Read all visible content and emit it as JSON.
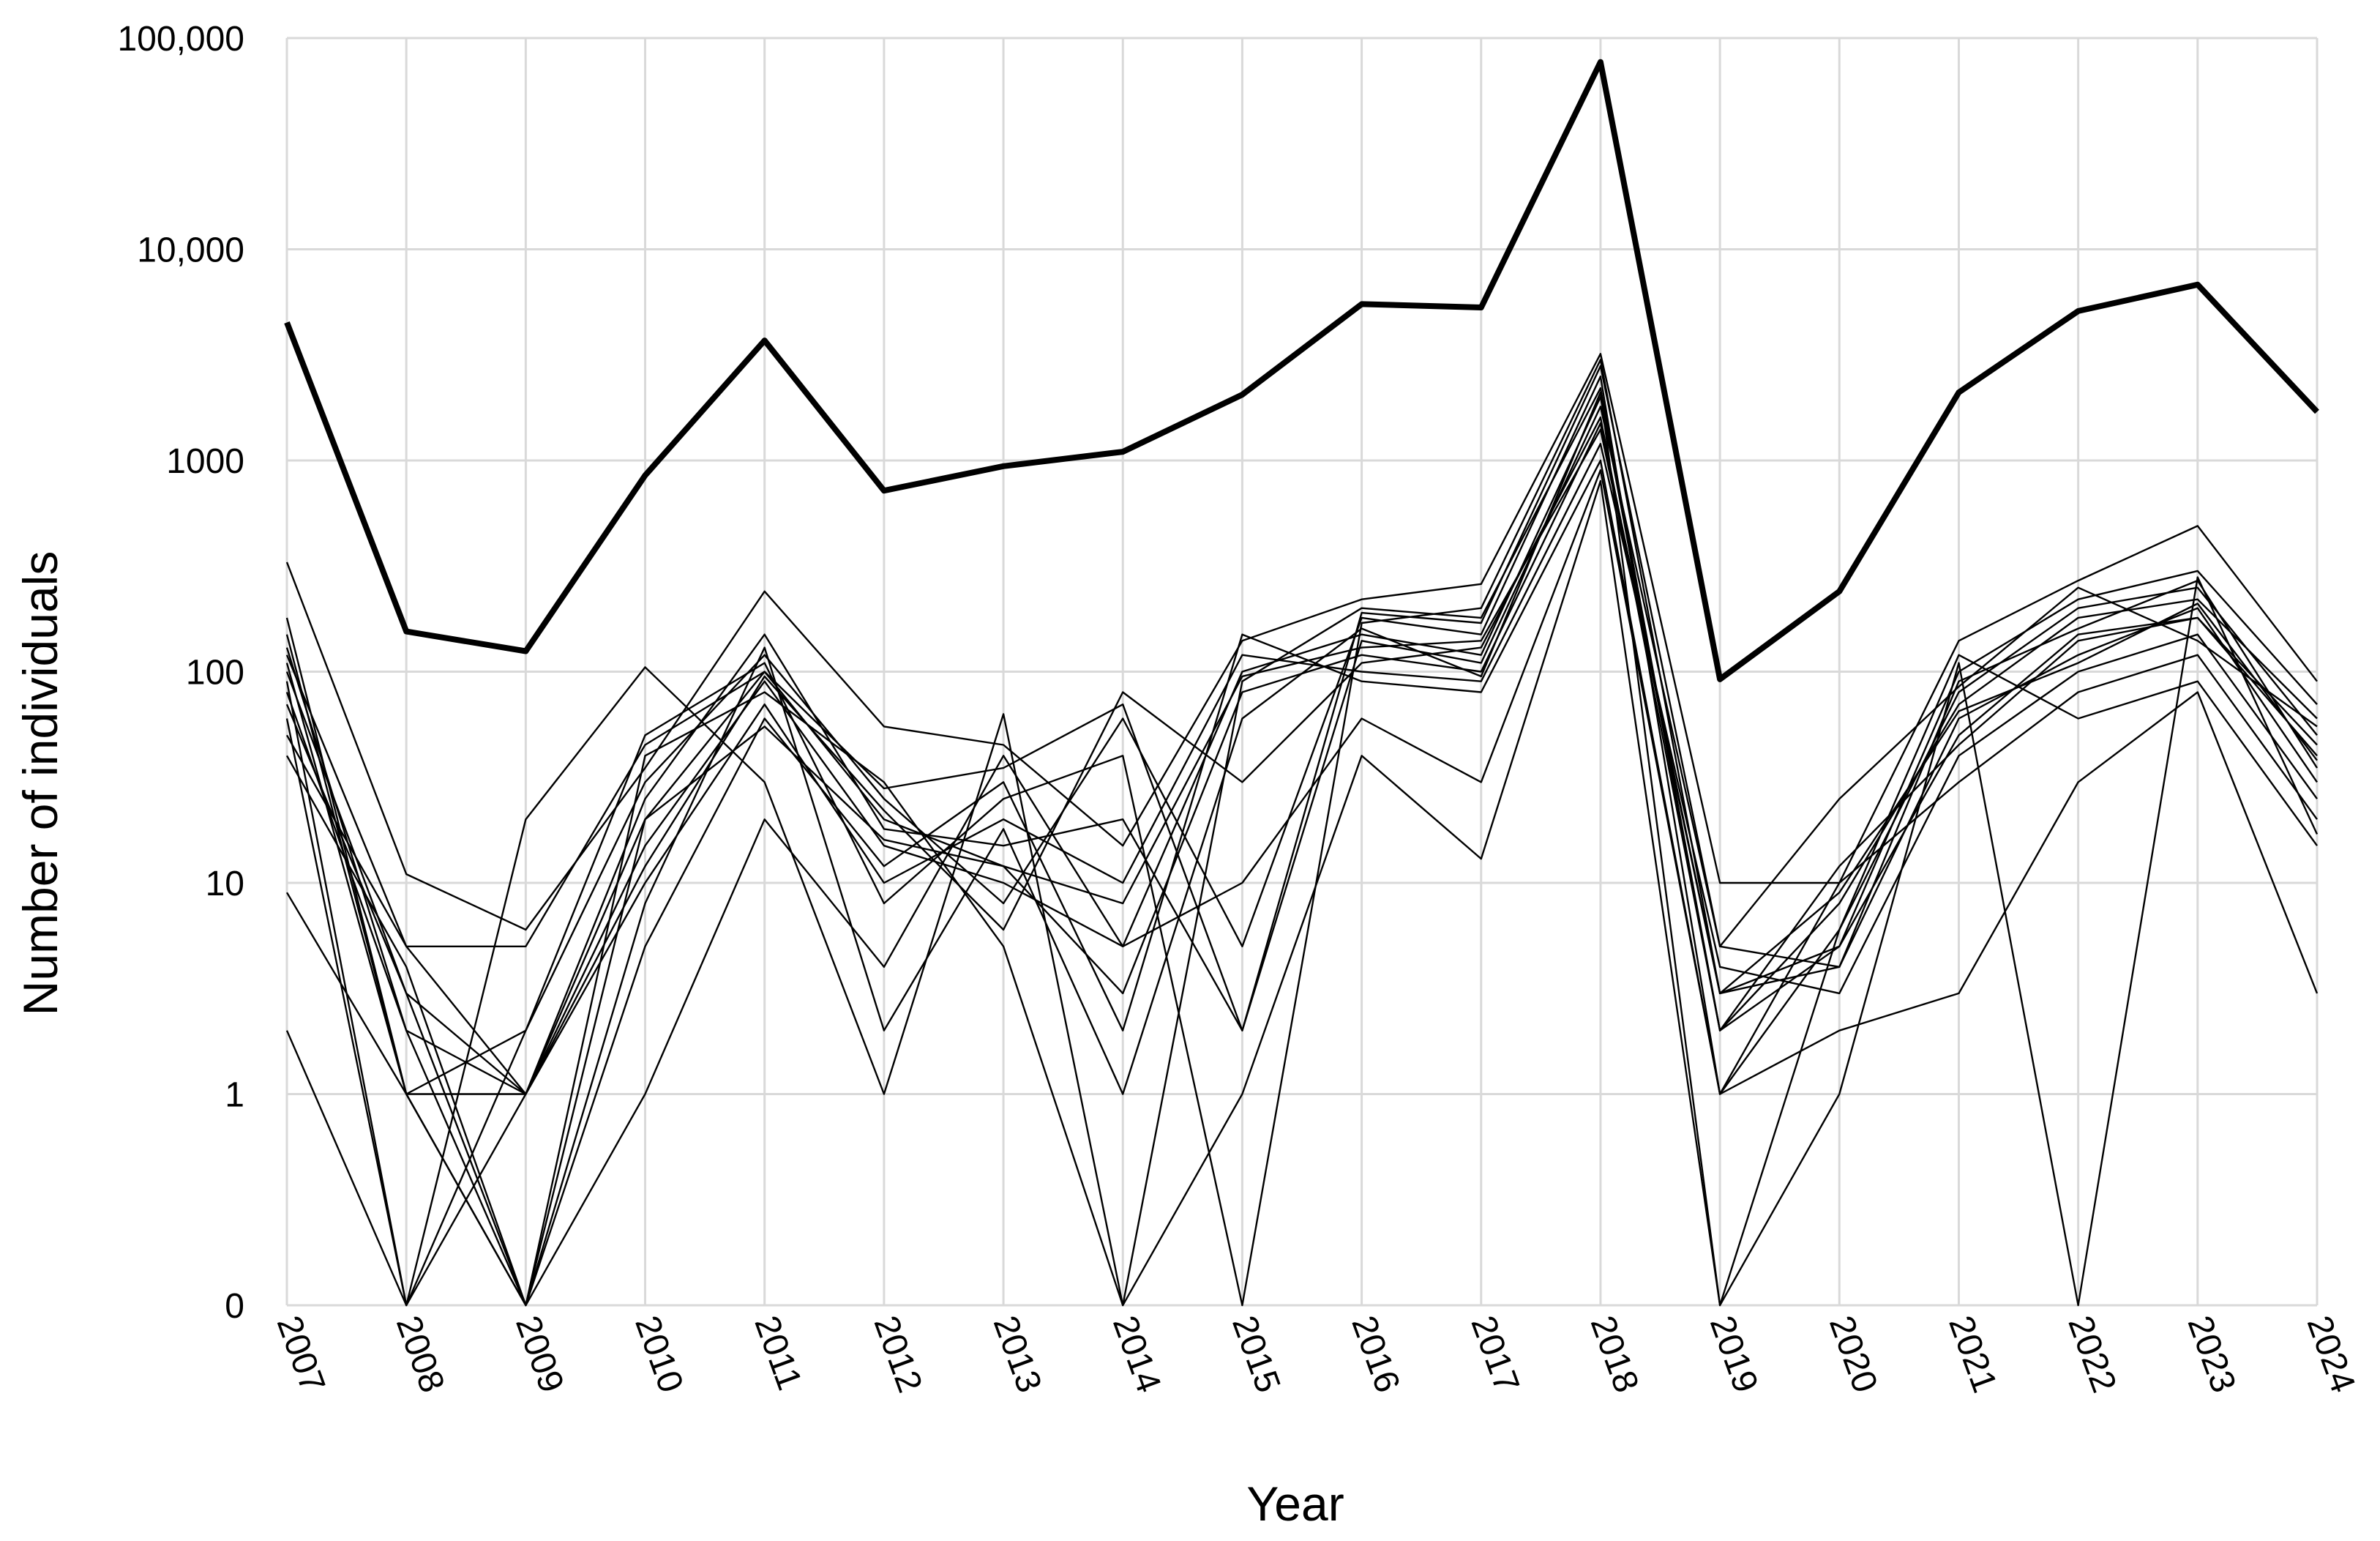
{
  "chart_data": {
    "type": "line",
    "xlabel": "Year",
    "ylabel": "Number of individuals",
    "y_scale": "log (zero shown below 1)",
    "ylim": [
      0,
      100000
    ],
    "grid": true,
    "legend": "none",
    "x": [
      2007,
      2008,
      2009,
      2010,
      2011,
      2012,
      2013,
      2014,
      2015,
      2016,
      2017,
      2018,
      2019,
      2020,
      2021,
      2022,
      2023,
      2024
    ],
    "x_tick_labels": [
      "2007",
      "2008",
      "2009",
      "2010",
      "2011",
      "2012",
      "2013",
      "2014",
      "2015",
      "2016",
      "2017",
      "2018",
      "2019",
      "2020",
      "2021",
      "2022",
      "2023",
      "2024"
    ],
    "y_ticks": [
      0,
      1,
      10,
      100,
      1000,
      10000,
      100000
    ],
    "y_tick_labels": [
      "0",
      "1",
      "10",
      "100",
      "1000",
      "10,000",
      "100,000"
    ],
    "series": [
      {
        "style": "thick",
        "values": [
          4500,
          155,
          125,
          850,
          3700,
          720,
          940,
          1100,
          2050,
          5500,
          5300,
          77000,
          92,
          240,
          2100,
          5100,
          6800,
          1700
        ]
      },
      {
        "values": [
          120,
          5,
          1,
          15,
          90,
          15,
          10,
          5,
          100,
          150,
          120,
          2000,
          2,
          5,
          50,
          150,
          180,
          40
        ]
      },
      {
        "values": [
          80,
          2,
          0,
          20,
          100,
          20,
          12,
          3,
          80,
          120,
          100,
          1500,
          3,
          4,
          60,
          120,
          200,
          30
        ]
      },
      {
        "values": [
          150,
          1,
          2,
          30,
          120,
          25,
          8,
          60,
          5,
          180,
          150,
          2500,
          1,
          6,
          80,
          200,
          250,
          50
        ]
      },
      {
        "values": [
          60,
          0,
          1,
          10,
          70,
          10,
          20,
          10,
          120,
          100,
          90,
          1200,
          4,
          3,
          40,
          100,
          150,
          25
        ]
      },
      {
        "values": [
          100,
          3,
          0,
          40,
          80,
          30,
          5,
          0,
          90,
          200,
          180,
          2200,
          2,
          8,
          70,
          180,
          220,
          60
        ]
      },
      {
        "values": [
          180,
          1,
          1,
          25,
          150,
          18,
          15,
          20,
          2,
          140,
          110,
          1800,
          5,
          4,
          90,
          160,
          270,
          35
        ]
      },
      {
        "values": [
          40,
          4,
          0,
          5,
          60,
          12,
          30,
          2,
          150,
          90,
          80,
          1000,
          1,
          10,
          30,
          80,
          120,
          20
        ]
      },
      {
        "values": [
          90,
          0,
          2,
          50,
          110,
          8,
          25,
          40,
          0,
          170,
          200,
          3000,
          3,
          5,
          100,
          220,
          300,
          70
        ]
      },
      {
        "values": [
          130,
          2,
          1,
          12,
          95,
          22,
          6,
          80,
          30,
          110,
          130,
          1600,
          2,
          12,
          45,
          140,
          180,
          45
        ]
      },
      {
        "values": [
          110,
          1,
          0,
          8,
          130,
          2,
          18,
          1,
          60,
          160,
          95,
          2100,
          0,
          6,
          120,
          60,
          90,
          15
        ]
      },
      {
        "values": [
          330,
          11,
          6,
          35,
          240,
          55,
          45,
          15,
          140,
          220,
          260,
          3200,
          10,
          10,
          140,
          270,
          490,
          90
        ]
      },
      {
        "values": [
          9,
          1,
          0,
          1,
          20,
          4,
          40,
          5,
          10,
          60,
          30,
          900,
          1,
          2,
          3,
          30,
          80,
          3
        ]
      },
      {
        "values": [
          2,
          0,
          20,
          105,
          30,
          1,
          63,
          0,
          1,
          40,
          13,
          800,
          0,
          1,
          110,
          0,
          280,
          17
        ]
      },
      {
        "values": [
          50,
          5,
          5,
          45,
          100,
          28,
          35,
          70,
          2,
          190,
          170,
          2800,
          5,
          25,
          85,
          250,
          140,
          55
        ]
      },
      {
        "values": [
          70,
          3,
          1,
          20,
          55,
          16,
          12,
          8,
          95,
          130,
          140,
          1400,
          3,
          9,
          65,
          110,
          210,
          38
        ]
      }
    ]
  }
}
